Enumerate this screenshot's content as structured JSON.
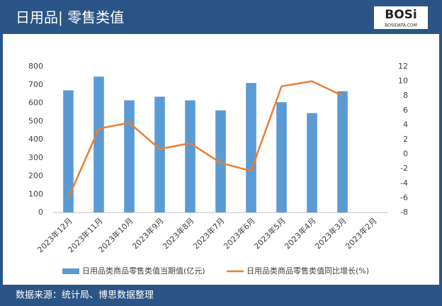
{
  "header": {
    "title": "日用品| 零售类值",
    "logo": "BOSi",
    "logo_sub": "BOSIDATA.COM"
  },
  "footer": {
    "source": "数据来源：统计局、博思数据整理"
  },
  "chart_data": {
    "type": "bar",
    "categories": [
      "2023年12月",
      "2023年11月",
      "2023年10月",
      "2023年9月",
      "2023年8月",
      "2023年7月",
      "2023年6月",
      "2023年5月",
      "2023年4月",
      "2023年3月",
      "2023年2月"
    ],
    "series": [
      {
        "name": "日用品类商品零售类值当期值(亿元)",
        "color": "#5b9bd5",
        "type": "bar",
        "values": [
          670,
          745,
          615,
          635,
          615,
          560,
          710,
          605,
          545,
          665,
          null
        ]
      },
      {
        "name": "日用品类商品零售类值同比增长(%)",
        "color": "#ed7d31",
        "type": "line",
        "axis": "y2",
        "values": [
          -6,
          3.5,
          4.3,
          0.7,
          1.5,
          -1.2,
          -2.3,
          9.3,
          10,
          8,
          null
        ]
      }
    ],
    "ylim": [
      0,
      800
    ],
    "yticks": [
      0,
      100,
      200,
      300,
      400,
      500,
      600,
      700,
      800
    ],
    "y2lim": [
      -8,
      12
    ],
    "y2ticks": [
      -8,
      -6,
      -4,
      -2,
      0,
      2,
      4,
      6,
      8,
      10,
      12
    ],
    "legend": "bottom"
  }
}
